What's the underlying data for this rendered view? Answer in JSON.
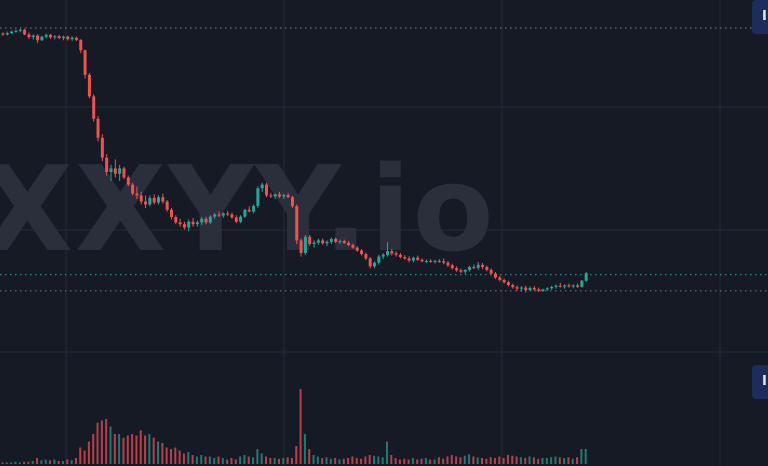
{
  "watermark": "XXYY.io",
  "price_tag_top": "I",
  "price_tag_bottom": "I",
  "colors": {
    "background": "#161a25",
    "grid": "#252a36",
    "up": "#26a69a",
    "down": "#ef5350",
    "volume_up": "#1f7a72",
    "volume_down": "#b6404a",
    "dotted_line": "#8a8f9c",
    "tag_background": "#1c2d5c",
    "watermark": "#2b2f3b"
  },
  "chart_data": {
    "type": "candlestick",
    "title": "",
    "xlabel": "",
    "ylabel": "",
    "ylim": [
      0,
      100
    ],
    "grid": true,
    "reference_lines": [
      95,
      26.5,
      22
    ],
    "candles": [
      [
        93.5,
        93.8,
        92.8,
        93.2
      ],
      [
        93.2,
        94.0,
        92.9,
        93.6
      ],
      [
        93.6,
        94.3,
        93.3,
        94.0
      ],
      [
        94.0,
        94.6,
        93.7,
        94.2
      ],
      [
        94.2,
        94.8,
        93.8,
        94.5
      ],
      [
        94.5,
        94.8,
        93.0,
        93.2
      ],
      [
        93.2,
        93.8,
        92.0,
        92.5
      ],
      [
        92.5,
        93.2,
        91.8,
        92.9
      ],
      [
        92.9,
        93.2,
        90.8,
        91.6
      ],
      [
        91.6,
        92.8,
        91.4,
        92.6
      ],
      [
        92.6,
        93.4,
        92.2,
        93.1
      ],
      [
        93.1,
        93.4,
        92.0,
        92.4
      ],
      [
        92.4,
        93.0,
        91.8,
        92.7
      ],
      [
        92.7,
        93.1,
        91.9,
        92.2
      ],
      [
        92.2,
        92.9,
        91.6,
        92.6
      ],
      [
        92.6,
        92.9,
        91.5,
        91.9
      ],
      [
        91.9,
        92.7,
        91.5,
        92.3
      ],
      [
        92.3,
        92.6,
        91.4,
        91.7
      ],
      [
        91.7,
        91.9,
        88.0,
        88.8
      ],
      [
        88.8,
        89.0,
        81.0,
        82.0
      ],
      [
        82.0,
        82.5,
        75.5,
        76.0
      ],
      [
        76.0,
        76.5,
        69.0,
        69.8
      ],
      [
        69.8,
        70.5,
        63.5,
        64.5
      ],
      [
        64.5,
        65.5,
        58.0,
        59.0
      ],
      [
        59.0,
        60.0,
        54.0,
        55.0
      ],
      [
        55.0,
        57.0,
        52.5,
        56.0
      ],
      [
        56.0,
        58.5,
        53.5,
        54.5
      ],
      [
        54.5,
        57.0,
        52.5,
        56.0
      ],
      [
        56.0,
        56.5,
        53.0,
        53.5
      ],
      [
        53.5,
        54.0,
        51.0,
        51.5
      ],
      [
        51.5,
        52.0,
        48.5,
        49.0
      ],
      [
        49.0,
        51.0,
        47.5,
        48.5
      ],
      [
        48.5,
        49.5,
        46.0,
        46.8
      ],
      [
        46.8,
        48.5,
        45.0,
        46.0
      ],
      [
        46.0,
        48.5,
        45.5,
        47.8
      ],
      [
        47.8,
        48.8,
        46.0,
        46.5
      ],
      [
        46.5,
        48.5,
        46.0,
        48.0
      ],
      [
        48.0,
        49.0,
        46.2,
        46.8
      ],
      [
        46.8,
        47.2,
        44.0,
        44.5
      ],
      [
        44.5,
        45.0,
        41.8,
        42.5
      ],
      [
        42.5,
        43.0,
        40.5,
        41.0
      ],
      [
        41.0,
        42.0,
        39.8,
        40.5
      ],
      [
        40.5,
        41.2,
        39.0,
        39.6
      ],
      [
        39.6,
        41.8,
        38.5,
        41.2
      ],
      [
        41.2,
        42.2,
        39.8,
        40.5
      ],
      [
        40.5,
        41.5,
        39.8,
        41.0
      ],
      [
        41.0,
        42.5,
        40.3,
        42.0
      ],
      [
        42.0,
        42.6,
        40.5,
        41.0
      ],
      [
        41.0,
        43.0,
        40.6,
        42.6
      ],
      [
        42.6,
        43.6,
        42.0,
        43.2
      ],
      [
        43.2,
        44.0,
        42.5,
        42.9
      ],
      [
        42.9,
        43.8,
        42.3,
        43.5
      ],
      [
        43.5,
        44.2,
        42.8,
        43.2
      ],
      [
        43.2,
        43.8,
        42.0,
        42.4
      ],
      [
        42.4,
        43.0,
        40.8,
        41.2
      ],
      [
        41.2,
        43.0,
        40.8,
        42.6
      ],
      [
        42.6,
        44.8,
        42.3,
        44.5
      ],
      [
        44.5,
        45.5,
        43.8,
        44.0
      ],
      [
        44.0,
        46.0,
        43.5,
        45.6
      ],
      [
        45.6,
        51.0,
        45.0,
        50.5
      ],
      [
        50.5,
        52.0,
        49.5,
        51.5
      ],
      [
        51.5,
        52.0,
        48.0,
        48.5
      ],
      [
        48.5,
        49.2,
        47.8,
        48.2
      ],
      [
        48.2,
        49.0,
        47.5,
        48.8
      ],
      [
        48.8,
        49.5,
        47.8,
        48.2
      ],
      [
        48.2,
        49.0,
        47.5,
        48.6
      ],
      [
        48.6,
        49.2,
        47.8,
        48.0
      ],
      [
        48.0,
        48.4,
        45.0,
        45.5
      ],
      [
        45.5,
        46.0,
        35.0,
        36.0
      ],
      [
        36.0,
        36.5,
        31.5,
        32.5
      ],
      [
        32.5,
        37.5,
        32.0,
        37.0
      ],
      [
        37.0,
        37.5,
        34.5,
        35.0
      ],
      [
        35.0,
        36.0,
        34.0,
        35.4
      ],
      [
        35.4,
        36.5,
        34.8,
        36.0
      ],
      [
        36.0,
        36.5,
        34.8,
        35.2
      ],
      [
        35.2,
        36.0,
        34.4,
        35.6
      ],
      [
        35.6,
        36.8,
        35.0,
        36.4
      ],
      [
        36.4,
        36.8,
        35.2,
        35.6
      ],
      [
        35.6,
        36.2,
        35.0,
        35.8
      ],
      [
        35.8,
        36.2,
        35.0,
        35.3
      ],
      [
        35.3,
        35.8,
        34.4,
        34.7
      ],
      [
        34.7,
        35.1,
        33.7,
        34.0
      ],
      [
        34.0,
        34.4,
        32.8,
        33.2
      ],
      [
        33.2,
        33.6,
        31.8,
        32.2
      ],
      [
        32.2,
        32.6,
        30.5,
        31.0
      ],
      [
        31.0,
        31.4,
        28.2,
        28.8
      ],
      [
        28.8,
        30.2,
        28.3,
        29.8
      ],
      [
        29.8,
        32.0,
        29.3,
        31.5
      ],
      [
        31.5,
        32.5,
        30.8,
        32.0
      ],
      [
        32.0,
        35.5,
        31.5,
        33.0
      ],
      [
        33.0,
        33.6,
        31.8,
        32.4
      ],
      [
        32.4,
        33.0,
        31.5,
        32.0
      ],
      [
        32.0,
        32.5,
        31.0,
        31.4
      ],
      [
        31.4,
        31.9,
        30.6,
        31.0
      ],
      [
        31.0,
        31.6,
        29.9,
        30.4
      ],
      [
        30.4,
        31.5,
        29.9,
        31.2
      ],
      [
        31.2,
        31.8,
        30.3,
        30.6
      ],
      [
        30.6,
        31.0,
        29.9,
        30.2
      ],
      [
        30.2,
        30.7,
        29.7,
        30.3
      ],
      [
        30.3,
        30.8,
        29.8,
        30.1
      ],
      [
        30.1,
        30.6,
        29.6,
        30.3
      ],
      [
        30.3,
        30.8,
        29.8,
        30.2
      ],
      [
        30.2,
        31.0,
        29.4,
        29.8
      ],
      [
        29.8,
        30.3,
        28.6,
        29.1
      ],
      [
        29.1,
        29.5,
        27.9,
        28.3
      ],
      [
        28.3,
        28.8,
        27.3,
        27.7
      ],
      [
        27.7,
        28.2,
        26.9,
        27.3
      ],
      [
        27.3,
        28.0,
        26.7,
        27.8
      ],
      [
        27.8,
        29.0,
        27.3,
        28.6
      ],
      [
        28.6,
        29.3,
        28.0,
        28.4
      ],
      [
        28.4,
        30.0,
        27.9,
        29.2
      ],
      [
        29.2,
        29.7,
        28.0,
        28.6
      ],
      [
        28.6,
        29.0,
        27.4,
        27.8
      ],
      [
        27.8,
        28.2,
        26.4,
        26.8
      ],
      [
        26.8,
        27.2,
        25.3,
        25.7
      ],
      [
        25.7,
        26.1,
        24.6,
        25.0
      ],
      [
        25.0,
        25.4,
        24.0,
        24.4
      ],
      [
        24.4,
        24.8,
        23.2,
        23.6
      ],
      [
        23.6,
        24.0,
        22.6,
        23.0
      ],
      [
        23.0,
        23.5,
        22.0,
        22.6
      ],
      [
        22.6,
        23.3,
        21.8,
        22.9
      ],
      [
        22.9,
        23.4,
        21.6,
        22.2
      ],
      [
        22.2,
        23.2,
        21.9,
        22.8
      ],
      [
        22.8,
        23.3,
        21.9,
        22.4
      ],
      [
        22.4,
        22.9,
        21.7,
        22.0
      ],
      [
        22.0,
        22.6,
        21.7,
        22.4
      ],
      [
        22.4,
        23.0,
        22.0,
        22.7
      ],
      [
        22.7,
        23.4,
        22.3,
        23.1
      ],
      [
        23.1,
        23.8,
        22.6,
        23.4
      ],
      [
        23.4,
        24.2,
        22.9,
        23.2
      ],
      [
        23.2,
        23.8,
        22.6,
        23.5
      ],
      [
        23.5,
        24.0,
        22.9,
        23.2
      ],
      [
        23.2,
        23.8,
        22.7,
        23.5
      ],
      [
        23.5,
        24.0,
        22.8,
        23.1
      ],
      [
        23.1,
        25.0,
        22.9,
        24.8
      ],
      [
        24.8,
        27.2,
        24.5,
        26.9
      ]
    ],
    "volume": [
      2,
      2,
      2,
      3,
      2,
      3,
      3,
      4,
      8,
      5,
      6,
      5,
      6,
      4,
      4,
      6,
      5,
      8,
      22,
      18,
      30,
      40,
      55,
      58,
      60,
      50,
      40,
      40,
      35,
      38,
      40,
      38,
      45,
      38,
      40,
      35,
      30,
      28,
      22,
      20,
      22,
      18,
      14,
      16,
      12,
      10,
      12,
      10,
      10,
      8,
      10,
      8,
      6,
      8,
      6,
      10,
      12,
      10,
      9,
      20,
      14,
      10,
      8,
      8,
      7,
      8,
      9,
      8,
      24,
      100,
      40,
      20,
      12,
      10,
      8,
      9,
      7,
      8,
      6,
      7,
      8,
      10,
      8,
      7,
      10,
      12,
      11,
      10,
      9,
      30,
      12,
      8,
      6,
      7,
      6,
      8,
      6,
      7,
      8,
      6,
      6,
      9,
      7,
      10,
      12,
      10,
      9,
      11,
      13,
      10,
      9,
      8,
      7,
      9,
      8,
      10,
      8,
      12,
      11,
      10,
      9,
      8,
      10,
      9,
      7,
      8,
      8,
      9,
      10,
      9,
      8,
      9,
      7,
      9,
      20,
      20
    ]
  }
}
